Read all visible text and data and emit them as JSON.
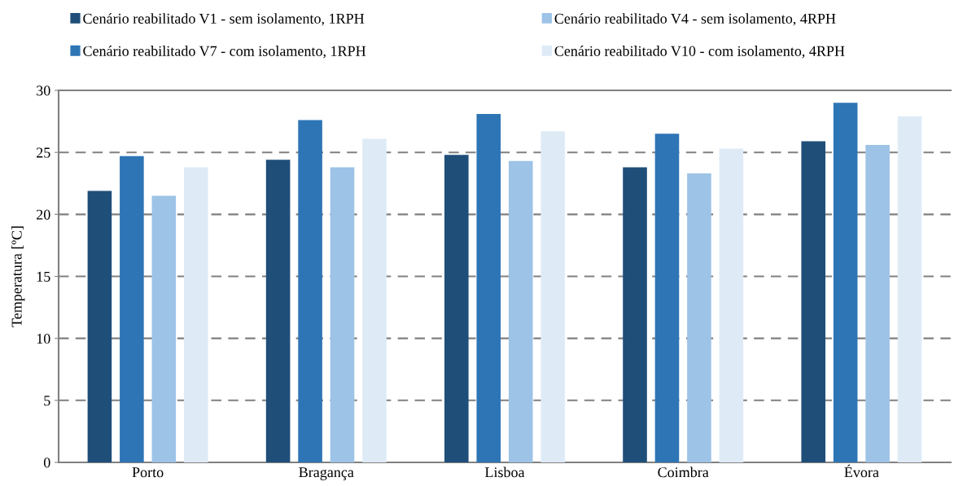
{
  "chart_data": {
    "type": "bar",
    "ylabel": "Temperatura [ºC]",
    "categories": [
      "Porto",
      "Bragança",
      "Lisboa",
      "Coimbra",
      "Évora"
    ],
    "series": [
      {
        "name": "Cenário reabilitado V1 - sem isolamento, 1RPH",
        "color": "#1f4e79",
        "values": [
          21.9,
          24.4,
          24.8,
          23.8,
          25.9
        ]
      },
      {
        "name": "Cenário reabilitado V7 - com isolamento, 1RPH",
        "color": "#2e75b6",
        "values": [
          24.7,
          27.6,
          28.1,
          26.5,
          29.0
        ]
      },
      {
        "name": "Cenário reabilitado V4 - sem isolamento, 4RPH",
        "color": "#9dc3e6",
        "values": [
          21.5,
          23.8,
          24.3,
          23.3,
          25.6
        ]
      },
      {
        "name": "Cenário reabilitado V10 - com isolamento, 4RPH",
        "color": "#deebf7",
        "values": [
          23.8,
          26.1,
          26.7,
          25.3,
          27.9
        ]
      }
    ],
    "ylim": [
      0,
      30
    ],
    "yticks": [
      0,
      5,
      10,
      15,
      20,
      25,
      30
    ],
    "grid": "y",
    "legend": "top"
  }
}
